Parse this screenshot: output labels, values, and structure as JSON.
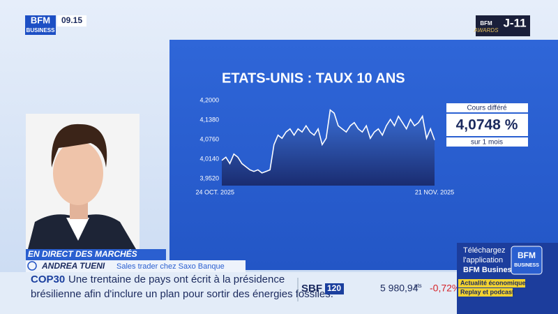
{
  "header": {
    "logo_top": "BFM",
    "logo_bottom": "BUSINESS",
    "time": "09.15",
    "countdown": "J-11",
    "awards_top": "BFM",
    "awards_bottom": "AWARDS"
  },
  "chart_data": {
    "type": "area",
    "title": "ETATS-UNIS : TAUX 10 ANS",
    "x": [
      0,
      1,
      2,
      3,
      4,
      5,
      6,
      7,
      8,
      9,
      10,
      11,
      12,
      13,
      14,
      15,
      16,
      17,
      18,
      19,
      20,
      21,
      22,
      23,
      24,
      25,
      26,
      27,
      28,
      29,
      30,
      31,
      32,
      33,
      34,
      35,
      36,
      37,
      38,
      39,
      40,
      41,
      42,
      43,
      44,
      45,
      46,
      47,
      48,
      49,
      50,
      51,
      52,
      53
    ],
    "series": [
      {
        "color": "#ffffff",
        "values": [
          4.01,
          4.02,
          4.0,
          4.03,
          4.02,
          4.0,
          3.99,
          3.98,
          3.975,
          3.98,
          3.97,
          3.975,
          3.98,
          4.06,
          4.09,
          4.08,
          4.1,
          4.11,
          4.09,
          4.11,
          4.1,
          4.12,
          4.1,
          4.09,
          4.11,
          4.06,
          4.08,
          4.17,
          4.16,
          4.12,
          4.11,
          4.1,
          4.12,
          4.13,
          4.11,
          4.1,
          4.12,
          4.08,
          4.1,
          4.11,
          4.09,
          4.12,
          4.14,
          4.12,
          4.15,
          4.13,
          4.11,
          4.14,
          4.12,
          4.13,
          4.15,
          4.08,
          4.11,
          4.0748
        ]
      }
    ],
    "xlim": [
      0,
      53
    ],
    "xticks": [
      {
        "value": 0,
        "label": "24 OCT. 2025"
      },
      {
        "value": 53,
        "label": "21 NOV. 2025"
      }
    ],
    "ylim": [
      3.93,
      4.22
    ],
    "yticks": [
      {
        "value": 4.2,
        "label": "4,2000"
      },
      {
        "value": 4.138,
        "label": "4,1380"
      },
      {
        "value": 4.076,
        "label": "4,0760"
      },
      {
        "value": 4.014,
        "label": "4,0140"
      },
      {
        "value": 3.952,
        "label": "3,9520"
      }
    ],
    "grid": false
  },
  "quote_box": {
    "label": "Cours différé",
    "value": "4,0748 %",
    "period": "sur 1 mois"
  },
  "lower_third": {
    "banner": "EN DIRECT DES MARCHÉS",
    "name": "ANDREA TUENI",
    "role": "Sales trader chez Saxo Banque"
  },
  "ticker": {
    "tag": "COP30",
    "lines": [
      "Une trentaine de pays ont écrit à la présidence",
      "brésilienne afin d'inclure un plan pour sortir des énergies fossiles."
    ]
  },
  "market": {
    "index_name": "SBF",
    "index_number": "120",
    "level": "5 980,94",
    "unit": "pts",
    "change": "-0,72%"
  },
  "promo": {
    "lines": [
      "Téléchargez",
      "l'application",
      "BFM Business"
    ],
    "logo_top": "BFM",
    "logo_bottom": "BUSINESS",
    "tags": [
      "Actualité économique",
      "Replay et podcast"
    ]
  }
}
